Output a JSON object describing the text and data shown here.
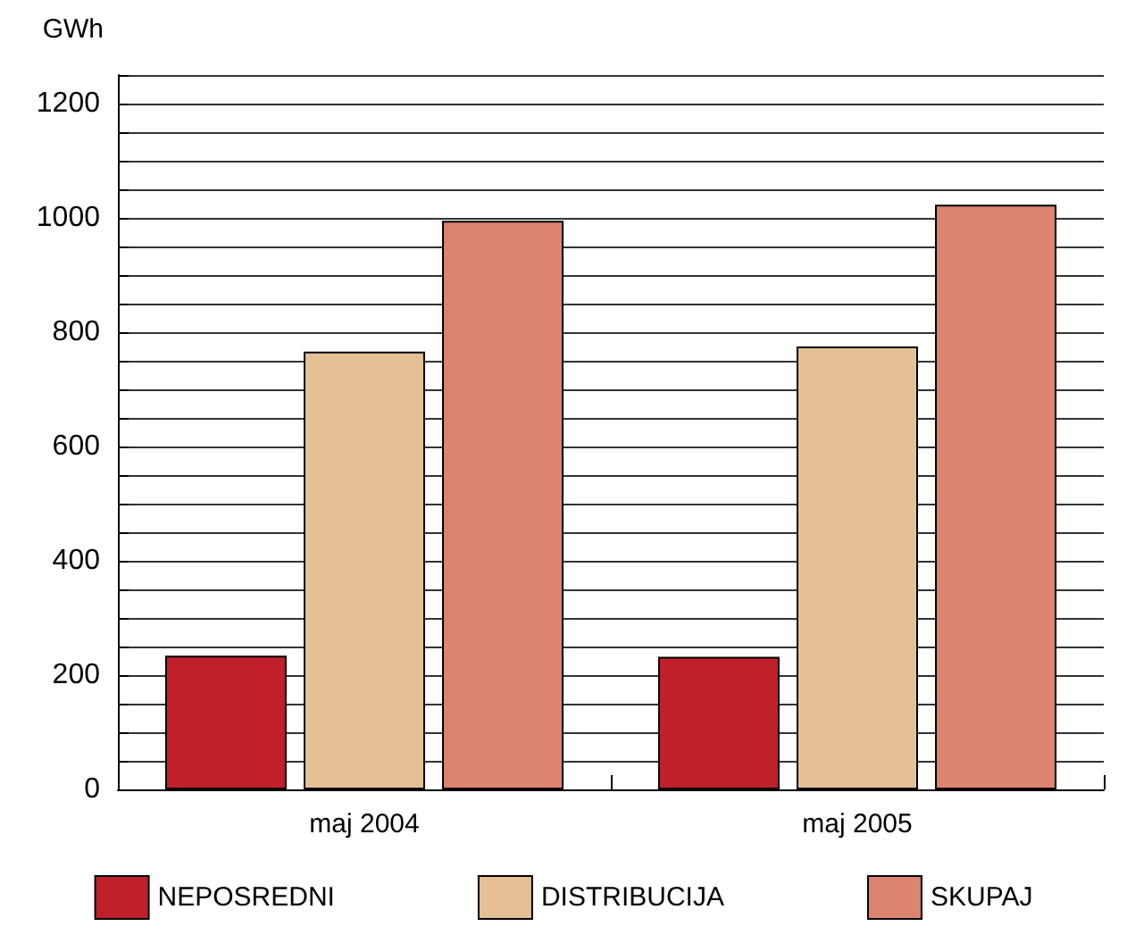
{
  "chart_data": {
    "type": "bar",
    "ylabel": "GWh",
    "categories": [
      "maj 2004",
      "maj 2005"
    ],
    "series": [
      {
        "name": "NEPOSREDNI",
        "color": "#c0202a",
        "values": [
          234,
          232
        ]
      },
      {
        "name": "DISTRIBUCIJA",
        "color": "#e6c095",
        "values": [
          766,
          775
        ]
      },
      {
        "name": "SKUPAJ",
        "color": "#dc8470",
        "values": [
          995,
          1023
        ]
      }
    ],
    "ylim": [
      0,
      1250
    ],
    "yticks": [
      0,
      {
        "value": 50,
        "label": null
      },
      {
        "value": 100,
        "label": null
      },
      {
        "value": 150,
        "label": null
      },
      200,
      {
        "value": 250,
        "label": null
      },
      {
        "value": 300,
        "label": null
      },
      {
        "value": 350,
        "label": null
      },
      400,
      {
        "value": 450,
        "label": null
      },
      {
        "value": 500,
        "label": null
      },
      {
        "value": 550,
        "label": null
      },
      600,
      {
        "value": 650,
        "label": null
      },
      {
        "value": 700,
        "label": null
      },
      {
        "value": 750,
        "label": null
      },
      800,
      {
        "value": 850,
        "label": null
      },
      {
        "value": 900,
        "label": null
      },
      {
        "value": 950,
        "label": null
      },
      1000,
      {
        "value": 1050,
        "label": null
      },
      {
        "value": 1100,
        "label": null
      },
      {
        "value": 1150,
        "label": null
      },
      1200,
      {
        "value": 1250,
        "label": null
      }
    ],
    "grid": "y",
    "legend": "bottom"
  }
}
